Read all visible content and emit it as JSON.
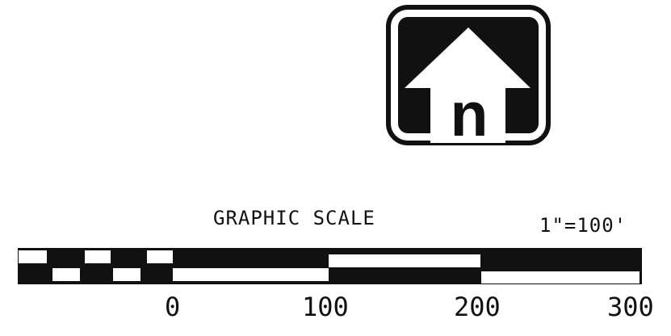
{
  "logo": {
    "icon": "north-arrow-icon",
    "letter": "n"
  },
  "scale": {
    "title": "GRAPHIC SCALE",
    "ratio": "1\"=100'",
    "ticks": [
      "0",
      "100",
      "200",
      "300"
    ]
  },
  "colors": {
    "ink": "#111111",
    "paper": "#ffffff"
  }
}
